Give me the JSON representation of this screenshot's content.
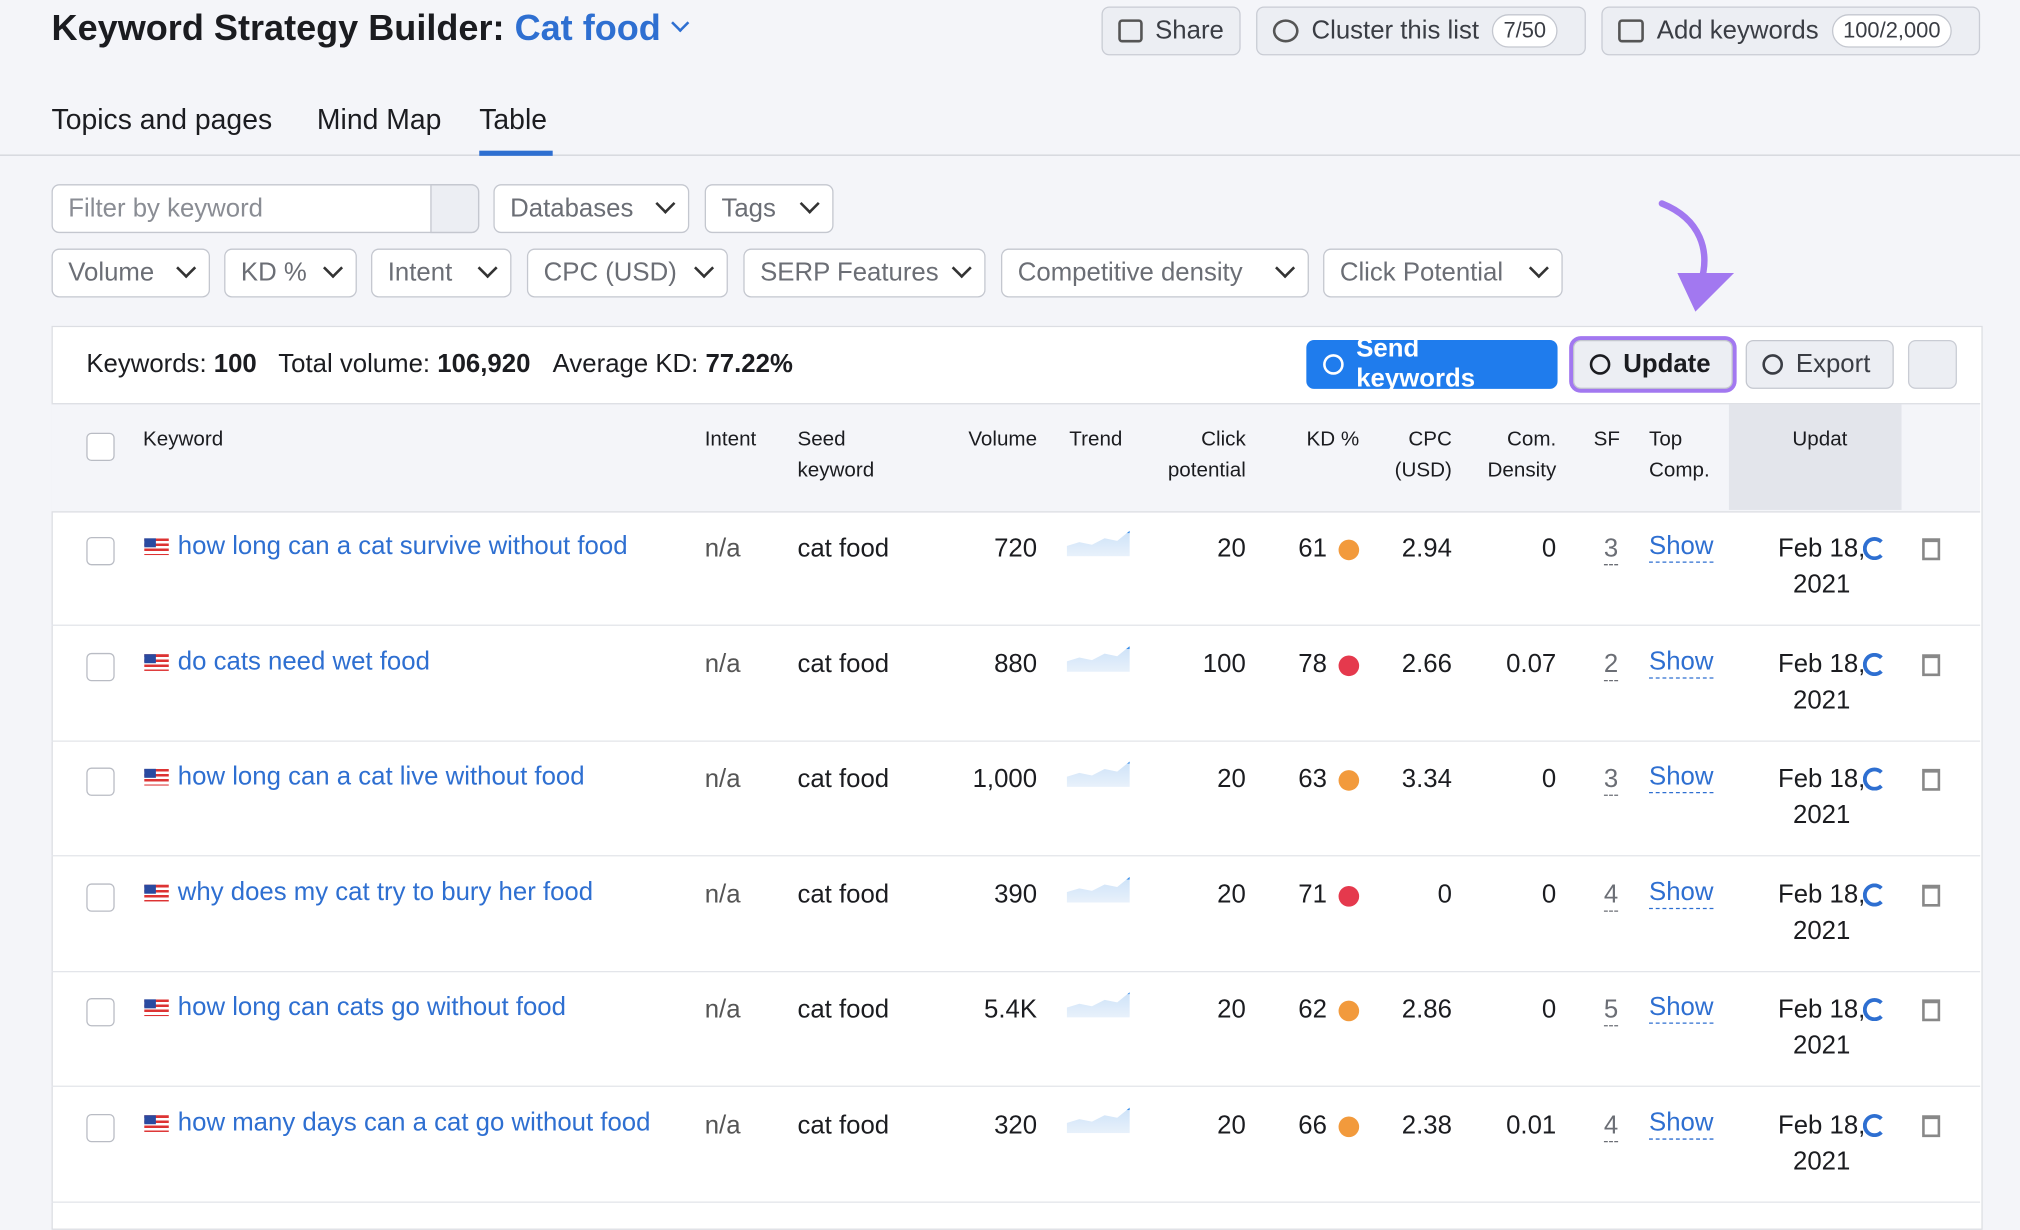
{
  "header": {
    "title": "Keyword Strategy Builder:",
    "subject": "Cat food",
    "buttons": [
      {
        "label": "Share"
      },
      {
        "label": "Cluster this list",
        "badge": "7/50"
      },
      {
        "label": "Add keywords",
        "badge": "100/2,000"
      }
    ]
  },
  "tabs": [
    "Topics and pages",
    "Mind Map",
    "Table"
  ],
  "filters": {
    "search_placeholder": "Filter by keyword",
    "row1": [
      "Databases",
      "Tags"
    ],
    "row2": [
      "Volume",
      "KD %",
      "Intent",
      "CPC (USD)",
      "SERP Features",
      "Competitive density",
      "Click Potential"
    ]
  },
  "summary": [
    {
      "label": "Keywords:",
      "value": "100"
    },
    {
      "label": "Total volume:",
      "value": "106,920"
    },
    {
      "label": "Average KD:",
      "value": "77.22%"
    }
  ],
  "actions": [
    "Send keywords",
    "Update",
    "Export"
  ],
  "table": {
    "columns": [
      "Keyword",
      "Intent",
      "Seed keyword",
      "Volume",
      "Trend",
      "Click potential",
      "KD %",
      "CPC (USD)",
      "Com. Density",
      "SF",
      "Top Comp.",
      "Updat"
    ],
    "rows": [
      {
        "keyword": "how long can a cat survive without food",
        "intent": "n/a",
        "seed": "cat food",
        "volume": "720",
        "click": "20",
        "kd": "61",
        "kd_color": "#f29a3c",
        "cpc": "2.94",
        "density": "0",
        "sf": "3",
        "top": "Show",
        "updated": "Feb 18, 2021"
      },
      {
        "keyword": "do cats need wet food",
        "intent": "n/a",
        "seed": "cat food",
        "volume": "880",
        "click": "100",
        "kd": "78",
        "kd_color": "#e5394d",
        "cpc": "2.66",
        "density": "0.07",
        "sf": "2",
        "top": "Show",
        "updated": "Feb 18, 2021"
      },
      {
        "keyword": "how long can a cat live without food",
        "intent": "n/a",
        "seed": "cat food",
        "volume": "1,000",
        "click": "20",
        "kd": "63",
        "kd_color": "#f29a3c",
        "cpc": "3.34",
        "density": "0",
        "sf": "3",
        "top": "Show",
        "updated": "Feb 18, 2021"
      },
      {
        "keyword": "why does my cat try to bury her food",
        "intent": "n/a",
        "seed": "cat food",
        "volume": "390",
        "click": "20",
        "kd": "71",
        "kd_color": "#e5394d",
        "cpc": "0",
        "density": "0",
        "sf": "4",
        "top": "Show",
        "updated": "Feb 18, 2021"
      },
      {
        "keyword": "how long can cats go without food",
        "intent": "n/a",
        "seed": "cat food",
        "volume": "5.4K",
        "click": "20",
        "kd": "62",
        "kd_color": "#f29a3c",
        "cpc": "2.86",
        "density": "0",
        "sf": "5",
        "top": "Show",
        "updated": "Feb 18, 2021"
      },
      {
        "keyword": "how many days can a cat go without food",
        "intent": "n/a",
        "seed": "cat food",
        "volume": "320",
        "click": "20",
        "kd": "66",
        "kd_color": "#f29a3c",
        "cpc": "2.38",
        "density": "0.01",
        "sf": "4",
        "top": "Show",
        "updated": "Feb 18, 2021"
      }
    ]
  }
}
